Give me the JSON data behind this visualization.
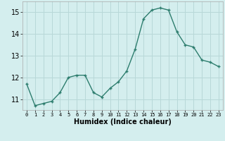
{
  "x": [
    0,
    1,
    2,
    3,
    4,
    5,
    6,
    7,
    8,
    9,
    10,
    11,
    12,
    13,
    14,
    15,
    16,
    17,
    18,
    19,
    20,
    21,
    22,
    23
  ],
  "y": [
    11.7,
    10.7,
    10.8,
    10.9,
    11.3,
    12.0,
    12.1,
    12.1,
    11.3,
    11.1,
    11.5,
    11.8,
    12.3,
    13.3,
    14.7,
    15.1,
    15.2,
    15.1,
    14.1,
    13.5,
    13.4,
    12.8,
    12.7,
    12.5
  ],
  "xlabel": "Humidex (Indice chaleur)",
  "ylim": [
    10.5,
    15.5
  ],
  "yticks": [
    11,
    12,
    13,
    14,
    15
  ],
  "xticks": [
    0,
    1,
    2,
    3,
    4,
    5,
    6,
    7,
    8,
    9,
    10,
    11,
    12,
    13,
    14,
    15,
    16,
    17,
    18,
    19,
    20,
    21,
    22,
    23
  ],
  "line_color": "#2d7d6e",
  "marker": "+",
  "marker_size": 3,
  "bg_color": "#d4eeee",
  "grid_color": "#b8d8d8",
  "xlabel_fontsize": 7,
  "xtick_fontsize": 5,
  "ytick_fontsize": 7
}
